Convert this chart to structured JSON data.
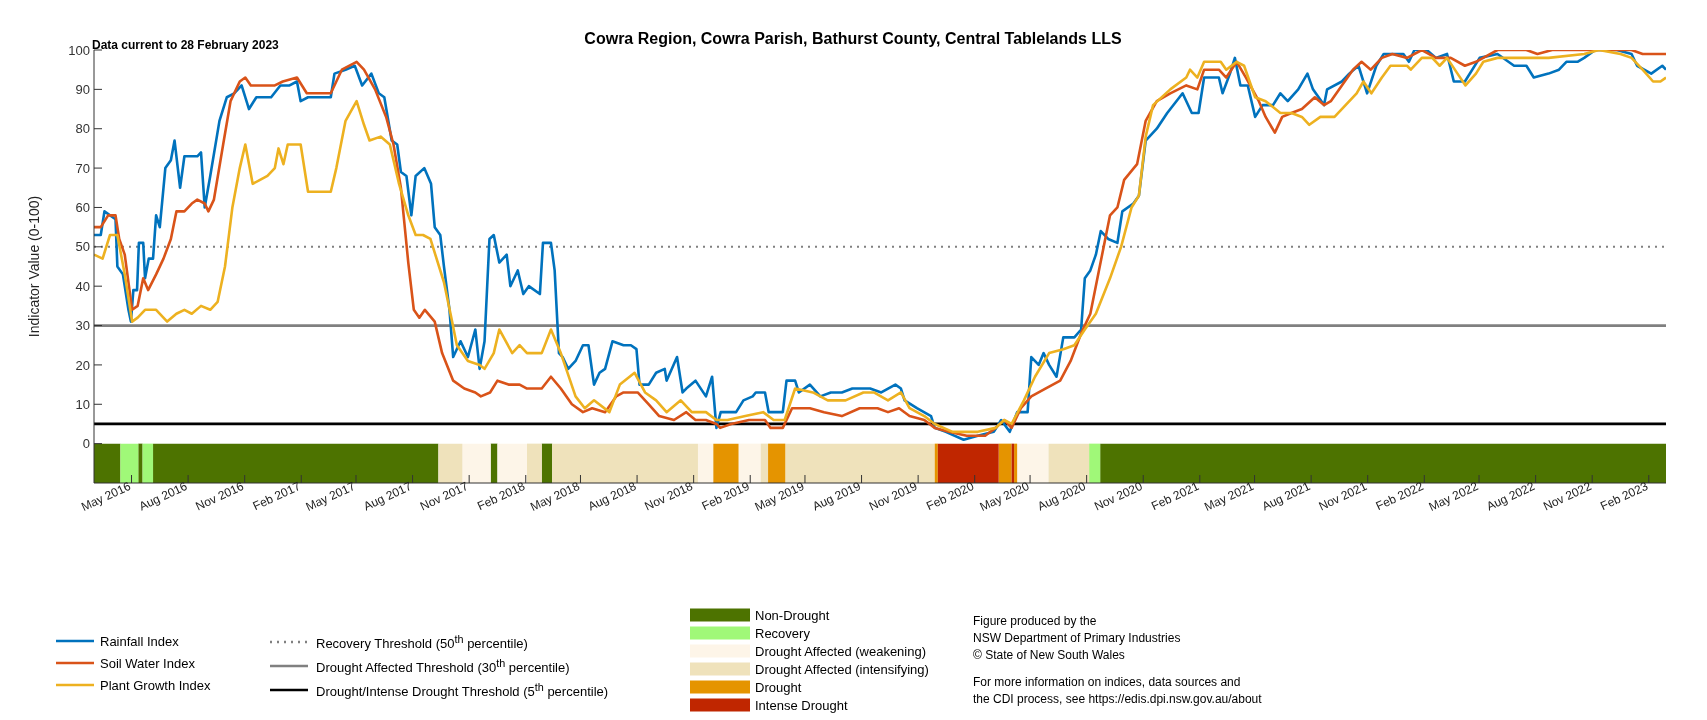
{
  "chart_data": {
    "type": "line",
    "title": "Cowra Region, Cowra Parish, Bathurst County, Central Tablelands LLS",
    "subtitle": "Data current to 28 February 2023",
    "ylabel": "Indicator Value (0-100)",
    "xlim": [
      "2016-03-01",
      "2023-03-01"
    ],
    "xticks": [
      {
        "value": "2016-05",
        "label": "May 2016"
      },
      {
        "value": "2016-08",
        "label": "Aug 2016"
      },
      {
        "value": "2016-11",
        "label": "Nov 2016"
      },
      {
        "value": "2017-02",
        "label": "Feb 2017"
      },
      {
        "value": "2017-05",
        "label": "May 2017"
      },
      {
        "value": "2017-08",
        "label": "Aug 2017"
      },
      {
        "value": "2017-11",
        "label": "Nov 2017"
      },
      {
        "value": "2018-02",
        "label": "Feb 2018"
      },
      {
        "value": "2018-05",
        "label": "May 2018"
      },
      {
        "value": "2018-08",
        "label": "Aug 2018"
      },
      {
        "value": "2018-11",
        "label": "Nov 2018"
      },
      {
        "value": "2019-02",
        "label": "Feb 2019"
      },
      {
        "value": "2019-05",
        "label": "May 2019"
      },
      {
        "value": "2019-08",
        "label": "Aug 2019"
      },
      {
        "value": "2019-11",
        "label": "Nov 2019"
      },
      {
        "value": "2020-02",
        "label": "Feb 2020"
      },
      {
        "value": "2020-05",
        "label": "May 2020"
      },
      {
        "value": "2020-08",
        "label": "Aug 2020"
      },
      {
        "value": "2020-11",
        "label": "Nov 2020"
      },
      {
        "value": "2021-02",
        "label": "Feb 2021"
      },
      {
        "value": "2021-05",
        "label": "May 2021"
      },
      {
        "value": "2021-08",
        "label": "Aug 2021"
      },
      {
        "value": "2021-11",
        "label": "Nov 2021"
      },
      {
        "value": "2022-02",
        "label": "Feb 2022"
      },
      {
        "value": "2022-05",
        "label": "May 2022"
      },
      {
        "value": "2022-08",
        "label": "Aug 2022"
      },
      {
        "value": "2022-11",
        "label": "Nov 2022"
      },
      {
        "value": "2023-02",
        "label": "Feb 2023"
      }
    ],
    "ylim": [
      -10,
      100
    ],
    "yticks": [
      0,
      10,
      20,
      30,
      40,
      50,
      60,
      70,
      80,
      90,
      100
    ],
    "grid": false,
    "legend": "bottom left",
    "marker": "none",
    "line_style": "solid",
    "series": [
      {
        "name": "Rainfall Index",
        "color": "#0072bd",
        "x": [
          "2016-03-01",
          "2016-03-12",
          "2016-03-18",
          "2016-04-05",
          "2016-04-08",
          "2016-04-17",
          "2016-04-26",
          "2016-04-30",
          "2016-05-04",
          "2016-05-10",
          "2016-05-13",
          "2016-05-20",
          "2016-05-23",
          "2016-05-29",
          "2016-06-05",
          "2016-06-10",
          "2016-06-16",
          "2016-06-25",
          "2016-07-04",
          "2016-07-10",
          "2016-07-19",
          "2016-07-26",
          "2016-08-16",
          "2016-08-22",
          "2016-08-28",
          "2016-09-06",
          "2016-09-21",
          "2016-10-03",
          "2016-10-15",
          "2016-10-27",
          "2016-11-08",
          "2016-11-20",
          "2016-12-14",
          "2016-12-29",
          "2017-01-13",
          "2017-01-25",
          "2017-01-31",
          "2017-02-12",
          "2017-03-21",
          "2017-03-27",
          "2017-04-14",
          "2017-04-29",
          "2017-05-11",
          "2017-05-26",
          "2017-06-07",
          "2017-06-16",
          "2017-06-28",
          "2017-07-07",
          "2017-07-13",
          "2017-07-22",
          "2017-07-30",
          "2017-08-06",
          "2017-08-20",
          "2017-08-31",
          "2017-09-06",
          "2017-09-15",
          "2017-09-21",
          "2017-09-30",
          "2017-10-06",
          "2017-10-18",
          "2017-10-30",
          "2017-11-11",
          "2017-11-18",
          "2017-11-26",
          "2017-12-04",
          "2017-12-11",
          "2017-12-20",
          "2018-01-01",
          "2018-01-07",
          "2018-01-19",
          "2018-01-28",
          "2018-02-06",
          "2018-02-24",
          "2018-03-01",
          "2018-03-14",
          "2018-03-20",
          "2018-03-27",
          "2018-04-02",
          "2018-04-11",
          "2018-04-23",
          "2018-05-05",
          "2018-05-14",
          "2018-05-23",
          "2018-06-01",
          "2018-06-10",
          "2018-06-22",
          "2018-07-10",
          "2018-07-22",
          "2018-07-31",
          "2018-08-05",
          "2018-08-20",
          "2018-09-01",
          "2018-09-15",
          "2018-09-18",
          "2018-10-05",
          "2018-10-14",
          "2018-10-20",
          "2018-11-04",
          "2018-11-21",
          "2018-12-01",
          "2018-12-08",
          "2018-12-15",
          "2019-01-09",
          "2019-01-21",
          "2019-02-05",
          "2019-02-10",
          "2019-02-25",
          "2019-03-03",
          "2019-03-26",
          "2019-04-01",
          "2019-04-15",
          "2019-04-21",
          "2019-05-09",
          "2019-05-26",
          "2019-06-12",
          "2019-06-30",
          "2019-07-17",
          "2019-08-15",
          "2019-09-02",
          "2019-09-25",
          "2019-10-04",
          "2019-10-10",
          "2019-10-30",
          "2019-11-22",
          "2019-11-28",
          "2019-12-16",
          "2020-01-14",
          "2020-02-06",
          "2020-03-03",
          "2020-03-15",
          "2020-03-29",
          "2020-04-10",
          "2020-04-27",
          "2020-05-03",
          "2020-05-15",
          "2020-05-23",
          "2020-06-01",
          "2020-06-13",
          "2020-06-24",
          "2020-07-12",
          "2020-07-23",
          "2020-07-29",
          "2020-08-07",
          "2020-08-16",
          "2020-08-24",
          "2020-09-05",
          "2020-09-20",
          "2020-09-28",
          "2020-10-16",
          "2020-10-25",
          "2020-11-05",
          "2020-11-23",
          "2020-12-10",
          "2021-01-04",
          "2021-01-19",
          "2021-01-30",
          "2021-02-08",
          "2021-03-04",
          "2021-03-10",
          "2021-03-22",
          "2021-03-30",
          "2021-04-08",
          "2021-04-20",
          "2021-05-02",
          "2021-05-14",
          "2021-05-31",
          "2021-06-12",
          "2021-06-24",
          "2021-07-11",
          "2021-07-26",
          "2021-08-04",
          "2021-08-22",
          "2021-08-27",
          "2021-09-20",
          "2021-10-02",
          "2021-10-17",
          "2021-10-31",
          "2021-11-15",
          "2021-11-27",
          "2021-12-29",
          "2022-01-07",
          "2022-01-16",
          "2022-02-05",
          "2022-02-20",
          "2022-03-10",
          "2022-03-21",
          "2022-04-08",
          "2022-05-02",
          "2022-05-31",
          "2022-06-27",
          "2022-07-17",
          "2022-07-29",
          "2022-08-22",
          "2022-09-08",
          "2022-09-20",
          "2022-10-08",
          "2022-10-19",
          "2022-11-06",
          "2022-12-11",
          "2023-01-04",
          "2023-01-13",
          "2023-02-05",
          "2023-02-23",
          "2023-03-01"
        ],
        "values": [
          53,
          53,
          59,
          57,
          45,
          43,
          34,
          31,
          39,
          39,
          51,
          51,
          42,
          47,
          47,
          58,
          55,
          70,
          72,
          77,
          65,
          73,
          73,
          74,
          60,
          68,
          82,
          88,
          89,
          91,
          85,
          88,
          88,
          91,
          91,
          92,
          87,
          88,
          88,
          94,
          95,
          96,
          91,
          94,
          89,
          88,
          77,
          76,
          69,
          68,
          58,
          68,
          70,
          66,
          55,
          53,
          45,
          34,
          22,
          26,
          22,
          29,
          19,
          26,
          52,
          53,
          46,
          48,
          40,
          44,
          38,
          40,
          38,
          51,
          51,
          44,
          23,
          22,
          19,
          21,
          25,
          25,
          15,
          18,
          19,
          26,
          25,
          25,
          24,
          15,
          15,
          18,
          19,
          16,
          22,
          13,
          14,
          16,
          12,
          17,
          4,
          8,
          8,
          11,
          12,
          13,
          13,
          8,
          8,
          16,
          16,
          13,
          15,
          12,
          13,
          13,
          14,
          14,
          13,
          15,
          14,
          11,
          9,
          7,
          4,
          3,
          1,
          2,
          3,
          6,
          3,
          8,
          8,
          22,
          20,
          23,
          20,
          17,
          27,
          27,
          29,
          42,
          44,
          48,
          54,
          52,
          51,
          59,
          61,
          63,
          77,
          80,
          84,
          89,
          84,
          84,
          93,
          93,
          89,
          94,
          98,
          91,
          91,
          83,
          86,
          86,
          89,
          87,
          90,
          94,
          90,
          86,
          90,
          92,
          94,
          96,
          89,
          96,
          99,
          99,
          97,
          100,
          100,
          98,
          99,
          92,
          92,
          98,
          99,
          96,
          96,
          93,
          94,
          95,
          97,
          97,
          98,
          100,
          100,
          99,
          96,
          94,
          96,
          95
        ]
      },
      {
        "name": "Soil Water Index",
        "color": "#d95319",
        "x": [
          "2016-03-01",
          "2016-03-12",
          "2016-03-24",
          "2016-04-05",
          "2016-04-11",
          "2016-04-20",
          "2016-05-02",
          "2016-05-11",
          "2016-05-20",
          "2016-05-28",
          "2016-06-10",
          "2016-06-22",
          "2016-07-04",
          "2016-07-13",
          "2016-07-26",
          "2016-08-07",
          "2016-08-16",
          "2016-08-28",
          "2016-09-03",
          "2016-09-12",
          "2016-09-27",
          "2016-10-09",
          "2016-10-24",
          "2016-11-02",
          "2016-11-11",
          "2016-11-29",
          "2016-12-20",
          "2017-01-02",
          "2017-01-25",
          "2017-02-10",
          "2017-03-21",
          "2017-04-08",
          "2017-05-02",
          "2017-05-14",
          "2017-06-01",
          "2017-06-19",
          "2017-07-01",
          "2017-07-13",
          "2017-07-25",
          "2017-08-03",
          "2017-08-12",
          "2017-08-21",
          "2017-09-06",
          "2017-09-18",
          "2017-10-06",
          "2017-10-24",
          "2017-11-11",
          "2017-11-20",
          "2017-12-05",
          "2017-12-17",
          "2018-01-04",
          "2018-01-22",
          "2018-02-03",
          "2018-02-27",
          "2018-03-14",
          "2018-03-30",
          "2018-04-17",
          "2018-05-05",
          "2018-05-20",
          "2018-06-10",
          "2018-06-28",
          "2018-07-10",
          "2018-08-02",
          "2018-08-20",
          "2018-09-06",
          "2018-09-30",
          "2018-10-20",
          "2018-11-04",
          "2018-11-21",
          "2018-12-08",
          "2018-12-14",
          "2019-01-01",
          "2019-01-30",
          "2019-02-25",
          "2019-03-06",
          "2019-03-26",
          "2019-04-10",
          "2019-05-09",
          "2019-06-01",
          "2019-06-30",
          "2019-07-29",
          "2019-08-27",
          "2019-09-13",
          "2019-10-01",
          "2019-10-18",
          "2019-11-11",
          "2019-11-28",
          "2019-12-21",
          "2020-01-19",
          "2020-02-18",
          "2020-03-06",
          "2020-03-20",
          "2020-04-01",
          "2020-04-16",
          "2020-05-03",
          "2020-05-26",
          "2020-06-19",
          "2020-07-06",
          "2020-07-23",
          "2020-08-07",
          "2020-08-21",
          "2020-09-08",
          "2020-09-20",
          "2020-10-01",
          "2020-10-22",
          "2020-11-05",
          "2020-11-23",
          "2020-12-15",
          "2021-01-10",
          "2021-01-28",
          "2021-02-08",
          "2021-03-04",
          "2021-03-16",
          "2021-04-02",
          "2021-04-17",
          "2021-05-08",
          "2021-05-19",
          "2021-06-03",
          "2021-06-15",
          "2021-06-30",
          "2021-07-17",
          "2021-08-07",
          "2021-08-22",
          "2021-09-02",
          "2021-09-20",
          "2021-10-08",
          "2021-10-22",
          "2021-11-06",
          "2021-11-24",
          "2021-12-11",
          "2022-01-04",
          "2022-01-28",
          "2022-02-20",
          "2022-03-16",
          "2022-04-08",
          "2022-04-26",
          "2022-05-31",
          "2022-07-17",
          "2022-08-04",
          "2022-08-28",
          "2022-09-20",
          "2023-01-04",
          "2023-01-22",
          "2023-02-08",
          "2023-03-01"
        ],
        "values": [
          55,
          55,
          58,
          58,
          52,
          48,
          34,
          35,
          42,
          39,
          43,
          47,
          52,
          59,
          59,
          61,
          62,
          61,
          59,
          62,
          76,
          87,
          92,
          93,
          91,
          91,
          91,
          92,
          93,
          89,
          89,
          95,
          97,
          95,
          90,
          83,
          76,
          65,
          46,
          34,
          32,
          34,
          31,
          23,
          16,
          14,
          13,
          12,
          13,
          16,
          15,
          15,
          14,
          14,
          17,
          14,
          10,
          8,
          9,
          8,
          12,
          13,
          13,
          10,
          7,
          6,
          8,
          6,
          6,
          5,
          4,
          5,
          6,
          6,
          4,
          4,
          9,
          9,
          8,
          7,
          9,
          9,
          8,
          9,
          7,
          6,
          4,
          3,
          2,
          2,
          4,
          6,
          4,
          9,
          12,
          14,
          16,
          21,
          28,
          33,
          44,
          58,
          60,
          67,
          71,
          82,
          87,
          89,
          91,
          90,
          95,
          95,
          93,
          97,
          93,
          87,
          83,
          79,
          83,
          84,
          85,
          88,
          86,
          87,
          91,
          95,
          97,
          95,
          98,
          99,
          98,
          100,
          98,
          98,
          96,
          97,
          100,
          100,
          99,
          100,
          100,
          100,
          99,
          99,
          99
        ]
      },
      {
        "name": "Plant Growth Index",
        "color": "#edb120",
        "x": [
          "2016-03-01",
          "2016-03-15",
          "2016-03-27",
          "2016-04-08",
          "2016-04-20",
          "2016-05-02",
          "2016-05-11",
          "2016-05-23",
          "2016-06-10",
          "2016-06-28",
          "2016-07-13",
          "2016-07-26",
          "2016-08-07",
          "2016-08-22",
          "2016-09-06",
          "2016-09-18",
          "2016-09-30",
          "2016-10-12",
          "2016-10-24",
          "2016-11-02",
          "2016-11-14",
          "2016-11-26",
          "2016-12-08",
          "2016-12-20",
          "2016-12-26",
          "2017-01-03",
          "2017-01-10",
          "2017-01-31",
          "2017-02-12",
          "2017-03-21",
          "2017-03-30",
          "2017-04-14",
          "2017-05-02",
          "2017-05-14",
          "2017-05-23",
          "2017-06-10",
          "2017-06-25",
          "2017-07-10",
          "2017-07-25",
          "2017-08-06",
          "2017-08-18",
          "2017-08-30",
          "2017-09-21",
          "2017-10-03",
          "2017-10-12",
          "2017-10-30",
          "2017-11-18",
          "2017-11-26",
          "2017-12-11",
          "2017-12-20",
          "2018-01-10",
          "2018-01-22",
          "2018-02-03",
          "2018-02-27",
          "2018-03-14",
          "2018-03-30",
          "2018-04-23",
          "2018-05-08",
          "2018-05-23",
          "2018-06-17",
          "2018-07-04",
          "2018-07-28",
          "2018-08-14",
          "2018-09-01",
          "2018-09-18",
          "2018-10-11",
          "2018-10-29",
          "2018-11-21",
          "2018-12-08",
          "2018-12-26",
          "2019-01-24",
          "2019-02-22",
          "2019-03-11",
          "2019-03-29",
          "2019-04-15",
          "2019-05-14",
          "2019-06-07",
          "2019-07-06",
          "2019-08-04",
          "2019-08-21",
          "2019-09-13",
          "2019-10-04",
          "2019-10-18",
          "2019-11-11",
          "2019-11-28",
          "2019-12-27",
          "2020-02-06",
          "2020-03-06",
          "2020-03-20",
          "2020-04-01",
          "2020-04-21",
          "2020-05-09",
          "2020-06-01",
          "2020-06-24",
          "2020-07-12",
          "2020-07-29",
          "2020-08-16",
          "2020-09-08",
          "2020-09-26",
          "2020-10-13",
          "2020-10-25",
          "2020-11-05",
          "2020-11-17",
          "2020-12-15",
          "2021-01-10",
          "2021-01-16",
          "2021-01-28",
          "2021-02-08",
          "2021-03-07",
          "2021-03-16",
          "2021-04-02",
          "2021-04-14",
          "2021-05-02",
          "2021-05-19",
          "2021-06-12",
          "2021-06-30",
          "2021-07-17",
          "2021-07-29",
          "2021-08-16",
          "2021-09-08",
          "2021-09-26",
          "2021-10-14",
          "2021-10-25",
          "2021-11-07",
          "2021-11-24",
          "2021-12-08",
          "2022-01-04",
          "2022-01-10",
          "2022-01-28",
          "2022-02-14",
          "2022-02-26",
          "2022-03-10",
          "2022-03-27",
          "2022-04-09",
          "2022-04-26",
          "2022-05-08",
          "2022-05-31",
          "2022-07-05",
          "2022-08-22",
          "2022-10-19",
          "2022-11-12",
          "2022-12-17",
          "2023-01-04",
          "2023-01-22",
          "2023-02-08",
          "2023-02-20",
          "2023-03-01"
        ],
        "values": [
          48,
          47,
          53,
          53,
          43,
          31,
          32,
          34,
          34,
          31,
          33,
          34,
          33,
          35,
          34,
          36,
          45,
          60,
          70,
          76,
          66,
          67,
          68,
          70,
          75,
          71,
          76,
          76,
          64,
          64,
          70,
          82,
          87,
          81,
          77,
          78,
          76,
          66,
          58,
          53,
          53,
          52,
          41,
          32,
          25,
          21,
          20,
          19,
          23,
          29,
          23,
          25,
          23,
          23,
          29,
          23,
          12,
          9,
          11,
          8,
          15,
          18,
          13,
          11,
          8,
          11,
          8,
          8,
          6,
          6,
          7,
          8,
          6,
          6,
          14,
          13,
          11,
          11,
          13,
          13,
          11,
          13,
          9,
          7,
          5,
          3,
          3,
          4,
          6,
          5,
          11,
          17,
          23,
          24,
          25,
          29,
          33,
          42,
          50,
          60,
          63,
          78,
          86,
          90,
          93,
          95,
          93,
          97,
          97,
          95,
          97,
          96,
          88,
          87,
          84,
          84,
          83,
          81,
          83,
          83,
          86,
          89,
          92,
          89,
          93,
          96,
          96,
          95,
          98,
          98,
          96,
          98,
          94,
          91,
          94,
          97,
          98,
          98,
          98,
          99,
          100,
          99,
          98,
          95,
          92,
          92,
          93
        ]
      }
    ],
    "ref_lines": [
      {
        "axis": "y",
        "value": 50,
        "label": "Recovery Threshold (50$^{th}$ percentile)",
        "color": "#808080",
        "line_style": "dotted"
      },
      {
        "axis": "y",
        "value": 30,
        "label": "Drought Affected Threshold (30$^{th}$ percentile)",
        "color": "#808080",
        "line_style": "solid"
      },
      {
        "axis": "y",
        "value": 5,
        "label": "Drought/Intense Drought Threshold (5$^{th}$ percentile)",
        "color": "#000000",
        "line_style": "solid"
      }
    ],
    "bands": [
      {
        "axis": "x",
        "from": "2016-03-01",
        "to": "2016-04-13",
        "label": "Non-Drought",
        "color": "#4d7300"
      },
      {
        "axis": "x",
        "from": "2016-05-12",
        "to": "2016-05-19",
        "color": "#4d7300"
      },
      {
        "axis": "x",
        "from": "2016-06-05",
        "to": "2017-09-12",
        "color": "#4d7300"
      },
      {
        "axis": "x",
        "from": "2017-12-06",
        "to": "2017-12-17",
        "color": "#4d7300"
      },
      {
        "axis": "x",
        "from": "2018-02-27",
        "to": "2018-03-16",
        "color": "#4d7300"
      },
      {
        "axis": "x",
        "from": "2020-08-23",
        "to": "2023-03-01",
        "color": "#4d7300"
      },
      {
        "axis": "x",
        "from": "2016-04-13",
        "to": "2016-05-12",
        "label": "Recovery",
        "color": "#a0f878"
      },
      {
        "axis": "x",
        "from": "2016-05-19",
        "to": "2016-06-05",
        "color": "#a0f878"
      },
      {
        "axis": "x",
        "from": "2020-08-05",
        "to": "2020-08-23",
        "color": "#a0f878"
      },
      {
        "axis": "x",
        "from": "2017-10-21",
        "to": "2017-12-06",
        "label": "Drought Affected (weakening)",
        "color": "#fdf5e8"
      },
      {
        "axis": "x",
        "from": "2017-12-17",
        "to": "2018-02-03",
        "color": "#fdf5e8"
      },
      {
        "axis": "x",
        "from": "2018-11-08",
        "to": "2018-12-03",
        "color": "#fdf5e8"
      },
      {
        "axis": "x",
        "from": "2019-01-13",
        "to": "2019-02-18",
        "color": "#fdf5e8"
      },
      {
        "axis": "x",
        "from": "2020-04-10",
        "to": "2020-05-31",
        "color": "#fdf5e8"
      },
      {
        "axis": "x",
        "from": "2017-09-12",
        "to": "2017-10-21",
        "label": "Drought Affected (intensifying)",
        "color": "#efe2bb"
      },
      {
        "axis": "x",
        "from": "2018-02-03",
        "to": "2018-02-27",
        "color": "#efe2bb"
      },
      {
        "axis": "x",
        "from": "2018-03-16",
        "to": "2018-11-08",
        "color": "#efe2bb"
      },
      {
        "axis": "x",
        "from": "2019-02-18",
        "to": "2019-03-02",
        "color": "#efe2bb"
      },
      {
        "axis": "x",
        "from": "2019-03-30",
        "to": "2019-11-28",
        "color": "#efe2bb"
      },
      {
        "axis": "x",
        "from": "2020-05-31",
        "to": "2020-08-05",
        "color": "#efe2bb"
      },
      {
        "axis": "x",
        "from": "2018-12-03",
        "to": "2019-01-13",
        "label": "Drought",
        "color": "#e59400"
      },
      {
        "axis": "x",
        "from": "2019-03-02",
        "to": "2019-03-30",
        "color": "#e59400"
      },
      {
        "axis": "x",
        "from": "2019-11-28",
        "to": "2019-12-03",
        "color": "#e59400"
      },
      {
        "axis": "x",
        "from": "2020-03-11",
        "to": "2020-04-01",
        "color": "#e59400"
      },
      {
        "axis": "x",
        "from": "2020-04-05",
        "to": "2020-04-10",
        "color": "#e59400"
      },
      {
        "axis": "x",
        "from": "2019-12-03",
        "to": "2020-03-11",
        "label": "Intense Drought",
        "color": "#c02600"
      },
      {
        "axis": "x",
        "from": "2020-04-01",
        "to": "2020-04-05",
        "color": "#c02600"
      }
    ],
    "annotations": [
      "Figure produced by the\nNSW Department of Primary Industries\n© State of New South Wales",
      "For more information on indices, data sources and\nthe CDI process, see https://edis.dpi.nsw.gov.au/about"
    ]
  }
}
